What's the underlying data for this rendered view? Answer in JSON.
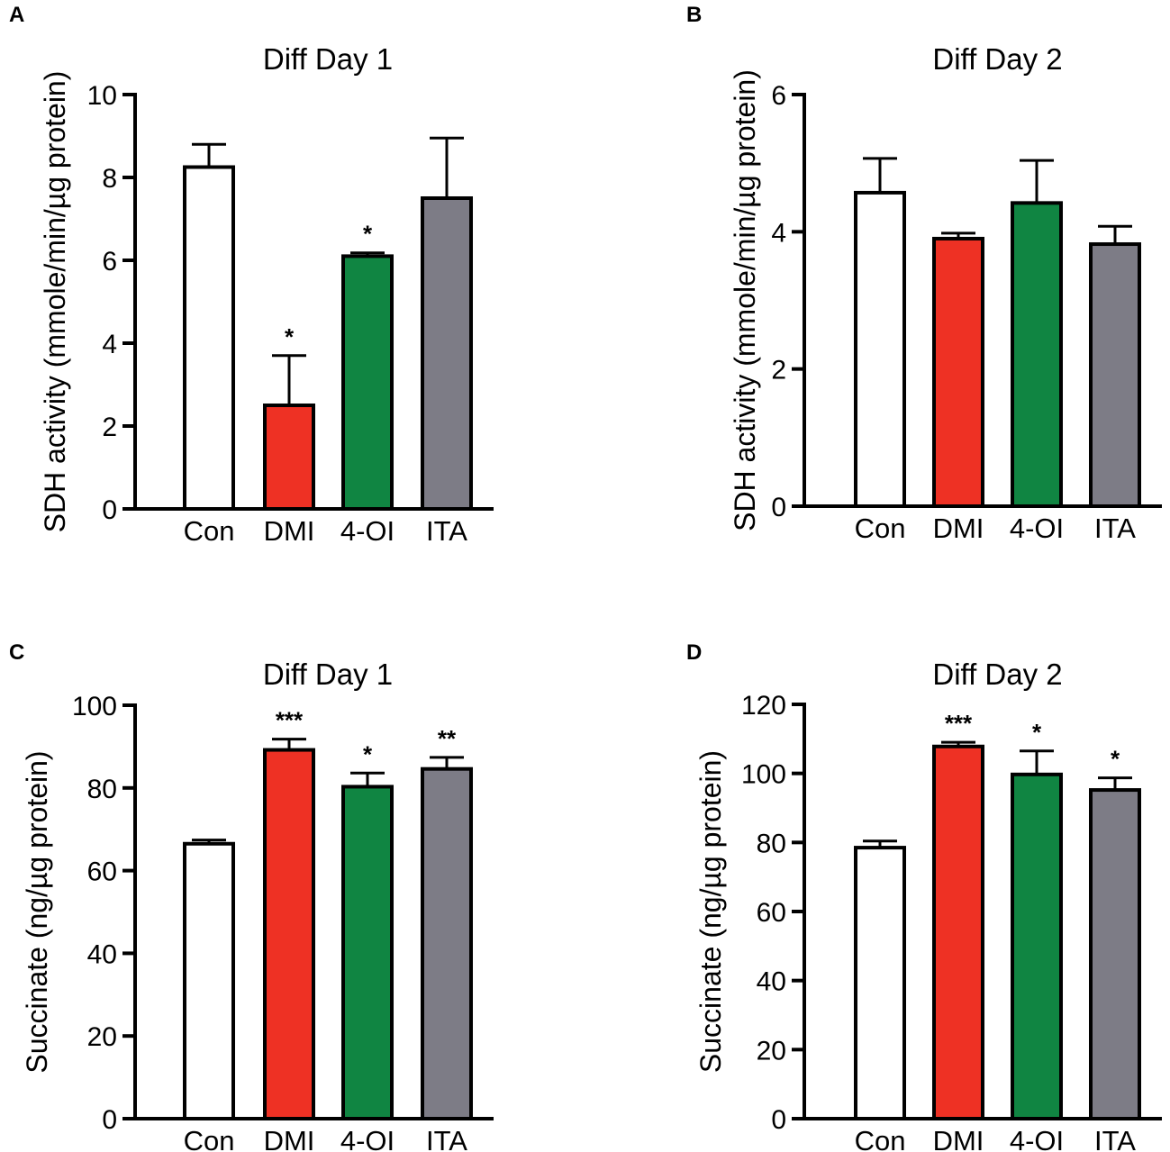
{
  "chart_data": [
    {
      "panel": "A",
      "type": "bar",
      "title": "Diff Day 1",
      "ylabel": "SDH activity (mmole/min/µg protein)",
      "xlabel": "",
      "categories": [
        "Con",
        "DMI",
        "4-OI",
        "ITA"
      ],
      "values": [
        8.25,
        2.5,
        6.1,
        7.5
      ],
      "errors": [
        0.55,
        1.2,
        0.08,
        1.45
      ],
      "significance": [
        "",
        "*",
        "*",
        ""
      ],
      "colors": [
        "#ffffff",
        "#ee3124",
        "#108542",
        "#7d7c86"
      ],
      "ylim": [
        0,
        10
      ],
      "yticks": [
        0,
        2,
        4,
        6,
        8,
        10
      ]
    },
    {
      "panel": "B",
      "type": "bar",
      "title": "Diff Day 2",
      "ylabel": "SDH activity (mmole/min/µg protein)",
      "xlabel": "",
      "categories": [
        "Con",
        "DMI",
        "4-OI",
        "ITA"
      ],
      "values": [
        4.57,
        3.9,
        4.42,
        3.82
      ],
      "errors": [
        0.5,
        0.08,
        0.62,
        0.26
      ],
      "significance": [
        "",
        "",
        "",
        ""
      ],
      "colors": [
        "#ffffff",
        "#ee3124",
        "#108542",
        "#7d7c86"
      ],
      "ylim": [
        0,
        6
      ],
      "yticks": [
        0,
        2,
        4,
        6
      ]
    },
    {
      "panel": "C",
      "type": "bar",
      "title": "Diff Day 1",
      "ylabel": "Succinate (ng/µg protein)",
      "xlabel": "",
      "categories": [
        "Con",
        "DMI",
        "4-OI",
        "ITA"
      ],
      "values": [
        66.5,
        89.2,
        80.3,
        84.6
      ],
      "errors": [
        0.9,
        2.6,
        3.3,
        2.8
      ],
      "significance": [
        "",
        "***",
        "*",
        "**"
      ],
      "colors": [
        "#ffffff",
        "#ee3124",
        "#108542",
        "#7d7c86"
      ],
      "ylim": [
        0,
        100
      ],
      "yticks": [
        0,
        20,
        40,
        60,
        80,
        100
      ]
    },
    {
      "panel": "D",
      "type": "bar",
      "title": "Diff Day 2",
      "ylabel": "Succinate (ng/µg protein)",
      "xlabel": "",
      "categories": [
        "Con",
        "DMI",
        "4-OI",
        "ITA"
      ],
      "values": [
        78.5,
        107.8,
        99.7,
        95.2
      ],
      "errors": [
        1.9,
        1.2,
        6.8,
        3.5
      ],
      "significance": [
        "",
        "***",
        "*",
        "*"
      ],
      "colors": [
        "#ffffff",
        "#ee3124",
        "#108542",
        "#7d7c86"
      ],
      "ylim": [
        0,
        120
      ],
      "yticks": [
        0,
        20,
        40,
        60,
        80,
        100,
        120
      ]
    }
  ]
}
